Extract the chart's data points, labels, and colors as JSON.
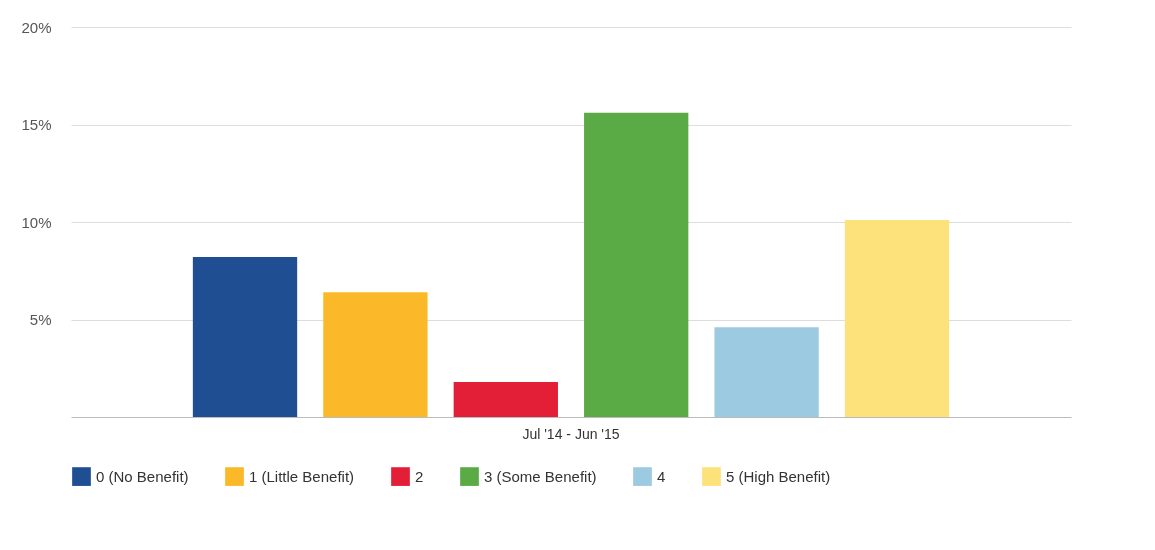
{
  "chart_data": {
    "type": "bar",
    "categories": [
      "Jul '14 - Jun '15"
    ],
    "series": [
      {
        "name": "0 (No Benefit)",
        "color": "#1f4e93",
        "values": [
          8.2
        ]
      },
      {
        "name": "1 (Little Benefit)",
        "color": "#fbb92a",
        "values": [
          6.4
        ]
      },
      {
        "name": "2",
        "color": "#e21f36",
        "values": [
          1.8
        ]
      },
      {
        "name": "3 (Some Benefit)",
        "color": "#5aab46",
        "values": [
          15.6
        ]
      },
      {
        "name": "4",
        "color": "#9ccbe1",
        "values": [
          4.6
        ]
      },
      {
        "name": "5 (High Benefit)",
        "color": "#fde27c",
        "values": [
          10.1
        ]
      }
    ],
    "ylim": [
      0,
      20
    ],
    "yticks": [
      {
        "value": 5,
        "label": "5%"
      },
      {
        "value": 10,
        "label": "10%"
      },
      {
        "value": 15,
        "label": "15%"
      },
      {
        "value": 20,
        "label": "20%"
      }
    ],
    "grid": "y",
    "legend": "bottom"
  }
}
